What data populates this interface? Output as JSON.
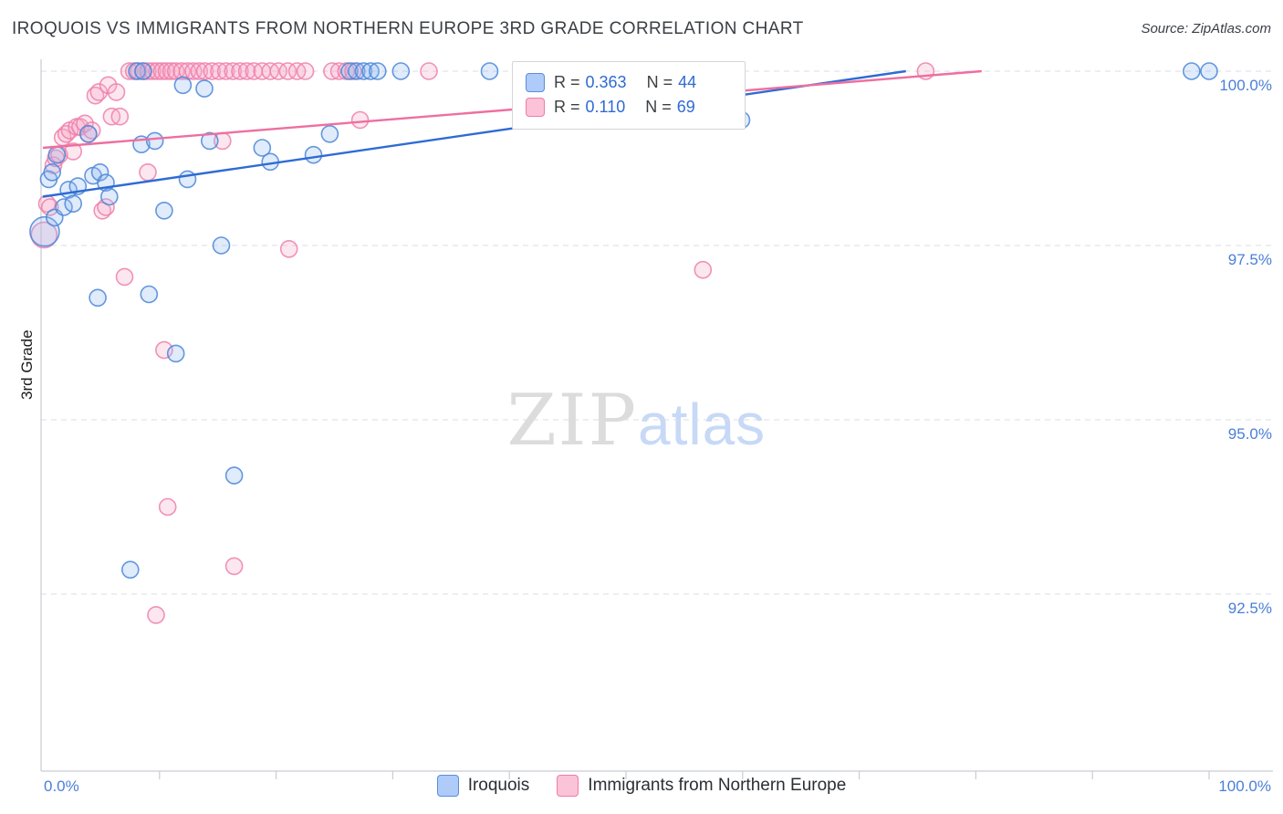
{
  "header": {
    "title": "IROQUOIS VS IMMIGRANTS FROM NORTHERN EUROPE 3RD GRADE CORRELATION CHART",
    "source": "Source: ZipAtlas.com"
  },
  "watermark": {
    "part1": "ZIP",
    "part2": "atlas"
  },
  "axes": {
    "y_label": "3rd Grade",
    "y_ticks": [
      "100.0%",
      "97.5%",
      "95.0%",
      "92.5%"
    ],
    "x_min_label": "0.0%",
    "x_max_label": "100.0%"
  },
  "legend_box": {
    "series": [
      {
        "r_label": "R =",
        "r_value": "0.363",
        "n_label": "N =",
        "n_value": "44"
      },
      {
        "r_label": "R =",
        "r_value": "0.110",
        "n_label": "N =",
        "n_value": "69"
      }
    ]
  },
  "bottom_legend": [
    {
      "label": "Iroquois"
    },
    {
      "label": "Immigrants from Northern Europe"
    }
  ],
  "colors": {
    "blue_stroke": "#4a86d8",
    "blue_fill": "#aecbfa",
    "pink_stroke": "#ee7fab",
    "pink_fill": "#fbc3d7",
    "axis_label_blue": "#4a7fd8",
    "gridline": "#dadde4"
  },
  "chart_data": {
    "type": "scatter",
    "title": "IROQUOIS VS IMMIGRANTS FROM NORTHERN EUROPE 3RD GRADE CORRELATION CHART",
    "xlabel": "",
    "ylabel": "3rd Grade",
    "xlim": [
      0,
      100
    ],
    "ylim": [
      90,
      100.5
    ],
    "y_gridlines": [
      100.0,
      97.5,
      95.0,
      92.5
    ],
    "grid": true,
    "legend_position": "top-center",
    "series": [
      {
        "name": "Iroquois",
        "R": 0.363,
        "N": 44,
        "color": "#4a86d8",
        "points": [
          [
            0.15,
            97.7,
            16
          ],
          [
            0.5,
            98.45
          ],
          [
            0.8,
            98.55
          ],
          [
            1.0,
            97.9
          ],
          [
            1.2,
            98.8
          ],
          [
            1.8,
            98.05
          ],
          [
            2.2,
            98.3
          ],
          [
            2.6,
            98.1
          ],
          [
            3.0,
            98.35
          ],
          [
            3.9,
            99.1
          ],
          [
            4.3,
            98.5
          ],
          [
            4.7,
            96.75
          ],
          [
            4.9,
            98.55
          ],
          [
            5.4,
            98.4
          ],
          [
            5.7,
            98.2
          ],
          [
            7.5,
            92.85
          ],
          [
            8.06,
            100.0
          ],
          [
            8.45,
            98.95
          ],
          [
            8.6,
            100.0
          ],
          [
            9.1,
            96.8
          ],
          [
            9.6,
            99.0
          ],
          [
            10.4,
            98.0
          ],
          [
            11.4,
            95.95
          ],
          [
            12.0,
            99.8
          ],
          [
            12.4,
            98.45
          ],
          [
            13.85,
            99.75
          ],
          [
            14.3,
            99.0
          ],
          [
            15.3,
            97.5
          ],
          [
            16.4,
            94.2
          ],
          [
            18.8,
            98.9
          ],
          [
            19.5,
            98.7
          ],
          [
            23.2,
            98.8
          ],
          [
            24.6,
            99.1
          ],
          [
            26.3,
            100.0
          ],
          [
            26.9,
            100.0
          ],
          [
            27.5,
            100.0
          ],
          [
            28.1,
            100.0
          ],
          [
            28.7,
            100.0
          ],
          [
            30.7,
            100.0
          ],
          [
            38.3,
            100.0
          ],
          [
            54.0,
            99.4
          ],
          [
            59.9,
            99.3
          ],
          [
            98.5,
            100.0
          ],
          [
            100.0,
            100.0
          ]
        ]
      },
      {
        "name": "Immigrants from Northern Europe",
        "R": 0.11,
        "N": 69,
        "color": "#ee7fab",
        "points": [
          [
            0.1,
            97.65,
            14
          ],
          [
            0.35,
            98.1
          ],
          [
            0.6,
            98.05
          ],
          [
            0.9,
            98.65
          ],
          [
            1.1,
            98.75
          ],
          [
            1.4,
            98.8
          ],
          [
            1.7,
            99.05
          ],
          [
            2.0,
            99.1
          ],
          [
            2.3,
            99.15
          ],
          [
            2.6,
            98.85
          ],
          [
            2.9,
            99.2
          ],
          [
            3.2,
            99.2
          ],
          [
            3.6,
            99.25
          ],
          [
            3.9,
            99.1
          ],
          [
            4.2,
            99.15
          ],
          [
            4.5,
            99.65
          ],
          [
            4.8,
            99.7
          ],
          [
            5.1,
            98.0
          ],
          [
            5.4,
            98.05
          ],
          [
            5.6,
            99.8
          ],
          [
            5.9,
            99.35
          ],
          [
            6.3,
            99.7
          ],
          [
            6.6,
            99.35
          ],
          [
            7.0,
            97.05
          ],
          [
            7.4,
            100.0
          ],
          [
            7.8,
            100.0
          ],
          [
            8.2,
            100.0
          ],
          [
            8.6,
            100.0
          ],
          [
            9.0,
            100.0
          ],
          [
            9.0,
            98.55
          ],
          [
            9.4,
            100.0
          ],
          [
            9.7,
            92.2
          ],
          [
            9.8,
            100.0
          ],
          [
            10.2,
            100.0
          ],
          [
            10.4,
            96.0
          ],
          [
            10.6,
            100.0
          ],
          [
            10.7,
            93.75
          ],
          [
            11.0,
            100.0
          ],
          [
            11.4,
            100.0
          ],
          [
            11.9,
            100.0
          ],
          [
            12.4,
            100.0
          ],
          [
            12.9,
            100.0
          ],
          [
            13.4,
            100.0
          ],
          [
            13.9,
            100.0
          ],
          [
            14.5,
            100.0
          ],
          [
            15.1,
            100.0
          ],
          [
            15.4,
            99.0
          ],
          [
            15.7,
            100.0
          ],
          [
            16.3,
            100.0
          ],
          [
            16.4,
            92.9
          ],
          [
            16.9,
            100.0
          ],
          [
            17.5,
            100.0
          ],
          [
            18.1,
            100.0
          ],
          [
            18.8,
            100.0
          ],
          [
            19.5,
            100.0
          ],
          [
            20.2,
            100.0
          ],
          [
            21.0,
            100.0
          ],
          [
            21.1,
            97.45
          ],
          [
            21.8,
            100.0
          ],
          [
            22.5,
            100.0
          ],
          [
            24.8,
            100.0
          ],
          [
            25.4,
            100.0
          ],
          [
            26.0,
            100.0
          ],
          [
            26.6,
            100.0
          ],
          [
            27.2,
            99.3
          ],
          [
            33.1,
            100.0
          ],
          [
            55.2,
            100.0
          ],
          [
            56.6,
            97.15
          ],
          [
            75.7,
            100.0
          ]
        ]
      }
    ],
    "trend_lines": [
      {
        "series": "Iroquois",
        "x1": 0,
        "y1": 98.2,
        "x2": 74,
        "y2": 100.0
      },
      {
        "series": "Immigrants from Northern Europe",
        "x1": 0,
        "y1": 98.9,
        "x2": 80.5,
        "y2": 100.0
      }
    ]
  }
}
